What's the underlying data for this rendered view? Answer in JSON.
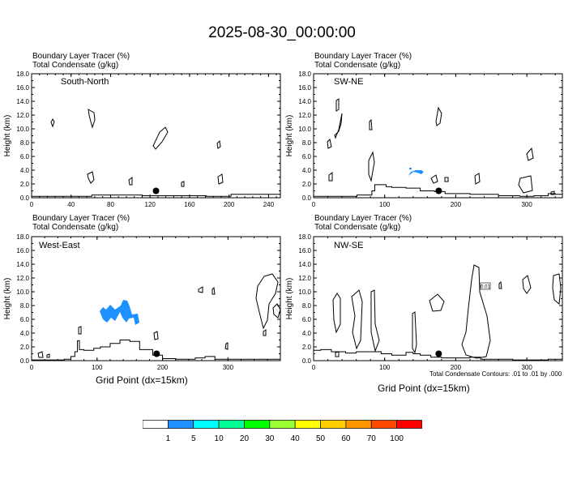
{
  "title": "2025-08-30_00:00:00",
  "panel_labels": {
    "line1": "Boundary Layer Tracer   (%)",
    "line2": "Total Condensate   (g/kg)"
  },
  "ylabel": "Height (km)",
  "xlabel": "Grid Point (dx=15km)",
  "contour_note": "Total Condensate Contours: .01 to .01 by .000",
  "contour_label": "0.01",
  "colors": {
    "tracer": "#1e90ff",
    "terrain": "#000000",
    "contour": "#000000"
  },
  "colorbar": {
    "levels": [
      "1",
      "5",
      "10",
      "20",
      "30",
      "40",
      "50",
      "60",
      "70",
      "100"
    ],
    "colors": [
      "#ffffff",
      "#1e90ff",
      "#00ffff",
      "#00ff96",
      "#00ff00",
      "#9aff32",
      "#ffff00",
      "#ffcd00",
      "#ff9600",
      "#ff4a00",
      "#ff0000"
    ]
  },
  "chart_data": [
    {
      "type": "contour",
      "name": "South-North",
      "xlim": [
        0,
        252
      ],
      "ylim": [
        0,
        18
      ],
      "xticks": [
        0,
        40,
        80,
        120,
        160,
        200,
        240
      ],
      "yticks": [
        "0.0",
        "2.0",
        "4.0",
        "6.0",
        "8.0",
        "10.0",
        "12.0",
        "14.0",
        "16.0",
        "18.0"
      ],
      "marker": {
        "x": 126,
        "y": 1.0
      },
      "terrain": [
        [
          0,
          0.2
        ],
        [
          60,
          0.2
        ],
        [
          61,
          0.4
        ],
        [
          110,
          0.4
        ],
        [
          112,
          0.3
        ],
        [
          175,
          0.3
        ],
        [
          177,
          0.2
        ],
        [
          200,
          0.2
        ],
        [
          202,
          0.5
        ],
        [
          252,
          0.5
        ]
      ]
    },
    {
      "type": "contour",
      "name": "SW-NE",
      "xlim": [
        0,
        350
      ],
      "ylim": [
        0,
        18
      ],
      "xticks": [
        0,
        100,
        200,
        300
      ],
      "yticks": [
        "0.0",
        "2.0",
        "4.0",
        "6.0",
        "8.0",
        "10.0",
        "12.0",
        "14.0",
        "16.0",
        "18.0"
      ],
      "marker": {
        "x": 176,
        "y": 1.0
      },
      "terrain": [
        [
          0,
          0.2
        ],
        [
          60,
          0.2
        ],
        [
          61,
          0.4
        ],
        [
          80,
          0.4
        ],
        [
          82,
          1.0
        ],
        [
          86,
          1.9
        ],
        [
          100,
          1.9
        ],
        [
          102,
          1.6
        ],
        [
          110,
          1.5
        ],
        [
          130,
          1.4
        ],
        [
          150,
          1.0
        ],
        [
          170,
          0.9
        ],
        [
          185,
          0.6
        ],
        [
          220,
          0.5
        ],
        [
          260,
          0.3
        ],
        [
          290,
          0.2
        ],
        [
          310,
          0.3
        ],
        [
          330,
          0.6
        ],
        [
          340,
          0.5
        ],
        [
          350,
          0.4
        ]
      ]
    },
    {
      "type": "contour",
      "name": "West-East",
      "xlim": [
        0,
        380
      ],
      "ylim": [
        0,
        18
      ],
      "xticks": [
        0,
        100,
        200,
        300
      ],
      "yticks": [
        "0.0",
        "2.0",
        "4.0",
        "6.0",
        "8.0",
        "10.0",
        "12.0",
        "14.0",
        "16.0",
        "18.0"
      ],
      "marker": {
        "x": 191,
        "y": 1.0
      },
      "terrain": [
        [
          0,
          0.1
        ],
        [
          50,
          0.2
        ],
        [
          60,
          0.6
        ],
        [
          66,
          1.3
        ],
        [
          70,
          2.9
        ],
        [
          73,
          1.6
        ],
        [
          80,
          1.5
        ],
        [
          95,
          1.8
        ],
        [
          105,
          2.0
        ],
        [
          120,
          2.5
        ],
        [
          135,
          3.0
        ],
        [
          150,
          2.8
        ],
        [
          165,
          1.6
        ],
        [
          185,
          0.8
        ],
        [
          200,
          0.3
        ],
        [
          220,
          0.2
        ],
        [
          250,
          0.4
        ],
        [
          265,
          0.6
        ],
        [
          280,
          0.2
        ],
        [
          380,
          0.1
        ]
      ]
    },
    {
      "type": "contour",
      "name": "NW-SE",
      "xlim": [
        0,
        350
      ],
      "ylim": [
        0,
        18
      ],
      "xticks": [
        0,
        100,
        200,
        300
      ],
      "yticks": [
        "0.0",
        "2.0",
        "4.0",
        "6.0",
        "8.0",
        "10.0",
        "12.0",
        "14.0",
        "16.0",
        "18.0"
      ],
      "marker": {
        "x": 176,
        "y": 1.0
      },
      "terrain": [
        [
          0,
          1.5
        ],
        [
          10,
          1.6
        ],
        [
          25,
          1.3
        ],
        [
          45,
          1.1
        ],
        [
          60,
          1.3
        ],
        [
          80,
          1.3
        ],
        [
          95,
          1.0
        ],
        [
          110,
          0.8
        ],
        [
          130,
          1.2
        ],
        [
          140,
          1.0
        ],
        [
          150,
          0.8
        ],
        [
          165,
          0.5
        ],
        [
          180,
          0.4
        ],
        [
          200,
          0.4
        ],
        [
          220,
          0.5
        ],
        [
          235,
          0.2
        ],
        [
          280,
          0.1
        ],
        [
          330,
          0.2
        ],
        [
          350,
          0.5
        ]
      ]
    }
  ]
}
